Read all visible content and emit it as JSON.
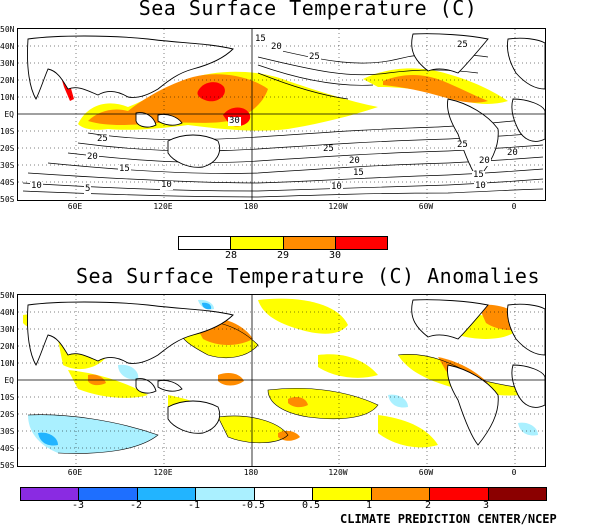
{
  "panels": {
    "sst": {
      "title": "Sea Surface Temperature (C)",
      "lat_labels": [
        "50N",
        "40N",
        "30N",
        "20N",
        "10N",
        "EQ",
        "10S",
        "20S",
        "30S",
        "40S",
        "50S"
      ],
      "lon_labels": [
        "60E",
        "120E",
        "180",
        "120W",
        "60W",
        "0"
      ],
      "contour_labels": [
        "15",
        "20",
        "25",
        "25",
        "25",
        "25",
        "20",
        "20",
        "15",
        "15",
        "10",
        "10",
        "10",
        "5",
        "25",
        "20",
        "20",
        "15",
        "10",
        "30"
      ],
      "colorbar": {
        "ticks": [
          "28",
          "29",
          "30"
        ],
        "colors": [
          "#ffffff",
          "#ffff00",
          "#ff8c00",
          "#ff0000"
        ]
      }
    },
    "anom": {
      "title": "Sea Surface Temperature (C) Anomalies",
      "lat_labels": [
        "50N",
        "40N",
        "30N",
        "20N",
        "10N",
        "EQ",
        "10S",
        "20S",
        "30S",
        "40S",
        "50S"
      ],
      "lon_labels": [
        "60E",
        "120E",
        "180",
        "120W",
        "60W",
        "0"
      ],
      "colorbar": {
        "ticks": [
          "-3",
          "-2",
          "-1",
          "-0.5",
          "0.5",
          "1",
          "2",
          "3"
        ],
        "colors": [
          "#8a2be2",
          "#1e6fff",
          "#22b4ff",
          "#aaf0ff",
          "#ffffff",
          "#ffff00",
          "#ff8c00",
          "#ff0000",
          "#8b0000"
        ]
      }
    }
  },
  "credit": "CLIMATE PREDICTION CENTER/NCEP"
}
